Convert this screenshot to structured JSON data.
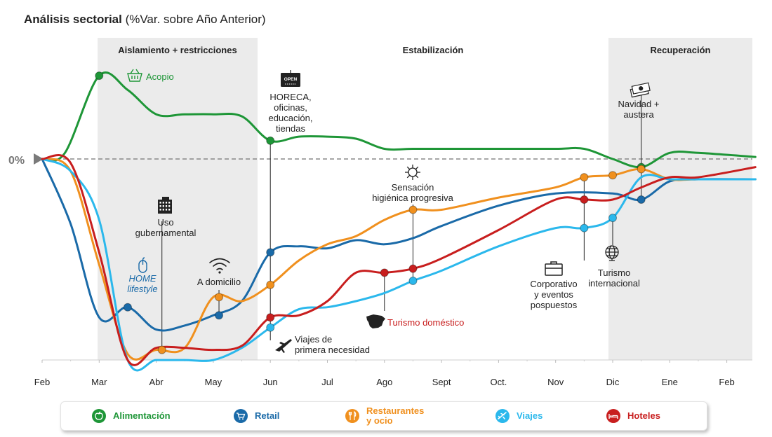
{
  "title": {
    "bold": "Análisis sectorial",
    "rest": " (%Var. sobre Año Anterior)"
  },
  "zero_label": "0%",
  "phases": [
    {
      "label": "Aislamiento + restricciones",
      "shaded": true
    },
    {
      "label": "Estabilización",
      "shaded": false
    },
    {
      "label": "Recuperación",
      "shaded": true
    }
  ],
  "annotations": {
    "acopio": "Acopio",
    "horeca": [
      "HORECA,",
      "oficinas,",
      "educación,",
      "tiendas"
    ],
    "uso": [
      "Uso",
      "gubernamental"
    ],
    "home": [
      "HOME",
      "lifestyle"
    ],
    "domicilio": "A domicilio",
    "sensacion": [
      "Sensación",
      "higiénica progresiva"
    ],
    "viajes_primera": [
      "Viajes de",
      "primera necesidad"
    ],
    "turismo_domestico": "Turismo doméstico",
    "corporativo": [
      "Corporativo",
      "y eventos",
      "pospuestos"
    ],
    "navidad": [
      "Navidad +",
      "austera"
    ],
    "turismo_internacional": [
      "Turismo",
      "internacional"
    ],
    "open_sign": "OPEN"
  },
  "colors": {
    "alimentacion": "#1e9637",
    "retail": "#1a6aa8",
    "restaurantes": "#f0901e",
    "viajes": "#2bb8ec",
    "hoteles": "#c81e1e",
    "shade": "#ebebeb"
  },
  "chart_data": {
    "type": "line",
    "title": "Análisis sectorial (%Var. sobre Año Anterior)",
    "xlabel": "",
    "ylabel": "",
    "categories": [
      "Feb",
      "Mar",
      "Abr",
      "May",
      "Jun",
      "Jul",
      "Ago",
      "Sept",
      "Oct.",
      "Nov",
      "Dic",
      "Ene",
      "Feb"
    ],
    "y_reference": "0%",
    "grid": false,
    "legend_position": "bottom",
    "series": [
      {
        "name": "Alimentación",
        "color": "#1e9637",
        "points": [
          [
            0,
            0
          ],
          [
            0.4,
            0.03
          ],
          [
            1,
            0.41
          ],
          [
            1.5,
            0.34
          ],
          [
            2,
            0.22
          ],
          [
            2.5,
            0.22
          ],
          [
            3,
            0.22
          ],
          [
            3.5,
            0.21
          ],
          [
            4,
            0.09
          ],
          [
            4.5,
            0.11
          ],
          [
            5,
            0.11
          ],
          [
            5.5,
            0.1
          ],
          [
            6,
            0.05
          ],
          [
            6.5,
            0.05
          ],
          [
            7,
            0.05
          ],
          [
            8,
            0.05
          ],
          [
            9,
            0.05
          ],
          [
            9.5,
            0.05
          ],
          [
            10,
            0.0
          ],
          [
            10.5,
            -0.04
          ],
          [
            11,
            0.03
          ],
          [
            11.5,
            0.03
          ],
          [
            12.5,
            0.01
          ]
        ]
      },
      {
        "name": "Retail",
        "color": "#1a6aa8",
        "points": [
          [
            0,
            0
          ],
          [
            0.5,
            -0.32
          ],
          [
            1,
            -0.78
          ],
          [
            1.5,
            -0.73
          ],
          [
            2,
            -0.84
          ],
          [
            2.5,
            -0.82
          ],
          [
            3,
            -0.77
          ],
          [
            3.5,
            -0.7
          ],
          [
            4,
            -0.46
          ],
          [
            4.5,
            -0.43
          ],
          [
            5,
            -0.44
          ],
          [
            5.5,
            -0.4
          ],
          [
            6,
            -0.42
          ],
          [
            6.5,
            -0.39
          ],
          [
            7,
            -0.33
          ],
          [
            8,
            -0.23
          ],
          [
            9,
            -0.17
          ],
          [
            10,
            -0.17
          ],
          [
            10.5,
            -0.2
          ],
          [
            11,
            -0.11
          ],
          [
            11.5,
            -0.1
          ],
          [
            12.5,
            -0.1
          ]
        ]
      },
      {
        "name": "Restaurantes y ocio",
        "color": "#f0901e",
        "points": [
          [
            0,
            0
          ],
          [
            0.5,
            -0.06
          ],
          [
            1,
            -0.52
          ],
          [
            1.5,
            -0.96
          ],
          [
            2,
            -0.94
          ],
          [
            2.5,
            -0.93
          ],
          [
            3,
            -0.68
          ],
          [
            3.5,
            -0.7
          ],
          [
            4,
            -0.62
          ],
          [
            4.5,
            -0.5
          ],
          [
            5,
            -0.42
          ],
          [
            5.5,
            -0.38
          ],
          [
            6,
            -0.3
          ],
          [
            6.5,
            -0.25
          ],
          [
            7,
            -0.25
          ],
          [
            8,
            -0.19
          ],
          [
            9,
            -0.14
          ],
          [
            9.5,
            -0.09
          ],
          [
            10,
            -0.08
          ],
          [
            10.5,
            -0.05
          ],
          [
            11,
            -0.1
          ],
          [
            11.5,
            -0.1
          ],
          [
            12.5,
            -0.1
          ]
        ]
      },
      {
        "name": "Viajes",
        "color": "#2bb8ec",
        "points": [
          [
            0,
            0
          ],
          [
            0.5,
            -0.06
          ],
          [
            1,
            -0.3
          ],
          [
            1.5,
            -0.99
          ],
          [
            2,
            -0.99
          ],
          [
            2.5,
            -0.99
          ],
          [
            3,
            -0.99
          ],
          [
            3.5,
            -0.93
          ],
          [
            4,
            -0.83
          ],
          [
            4.5,
            -0.74
          ],
          [
            5,
            -0.73
          ],
          [
            5.5,
            -0.7
          ],
          [
            6,
            -0.66
          ],
          [
            6.5,
            -0.6
          ],
          [
            7,
            -0.55
          ],
          [
            8,
            -0.43
          ],
          [
            9,
            -0.34
          ],
          [
            9.5,
            -0.34
          ],
          [
            10,
            -0.29
          ],
          [
            10.5,
            -0.09
          ],
          [
            11,
            -0.1
          ],
          [
            11.5,
            -0.1
          ],
          [
            12.5,
            -0.1
          ]
        ]
      },
      {
        "name": "Hoteles",
        "color": "#c81e1e",
        "points": [
          [
            0,
            0
          ],
          [
            0.5,
            -0.02
          ],
          [
            1,
            -0.46
          ],
          [
            1.5,
            -0.99
          ],
          [
            2,
            -0.93
          ],
          [
            2.5,
            -0.93
          ],
          [
            3,
            -0.94
          ],
          [
            3.5,
            -0.92
          ],
          [
            4,
            -0.78
          ],
          [
            4.5,
            -0.77
          ],
          [
            5,
            -0.7
          ],
          [
            5.5,
            -0.56
          ],
          [
            6,
            -0.56
          ],
          [
            6.5,
            -0.54
          ],
          [
            7,
            -0.49
          ],
          [
            8,
            -0.35
          ],
          [
            9,
            -0.2
          ],
          [
            9.5,
            -0.2
          ],
          [
            10,
            -0.2
          ],
          [
            10.5,
            -0.14
          ],
          [
            11,
            -0.09
          ],
          [
            11.5,
            -0.09
          ],
          [
            12.5,
            -0.04
          ]
        ]
      }
    ],
    "markers": [
      {
        "series": "Alimentación",
        "x": 1,
        "y": 0.41
      },
      {
        "series": "Alimentación",
        "x": 4,
        "y": 0.09
      },
      {
        "series": "Alimentación",
        "x": 10.5,
        "y": -0.04
      },
      {
        "series": "Retail",
        "x": 1.5,
        "y": -0.73
      },
      {
        "series": "Retail",
        "x": 3.1,
        "y": -0.77
      },
      {
        "series": "Retail",
        "x": 4,
        "y": -0.46
      },
      {
        "series": "Retail",
        "x": 10.5,
        "y": -0.2
      },
      {
        "series": "Restaurantes y ocio",
        "x": 2.1,
        "y": -0.94
      },
      {
        "series": "Restaurantes y ocio",
        "x": 3.1,
        "y": -0.68
      },
      {
        "series": "Restaurantes y ocio",
        "x": 4,
        "y": -0.62
      },
      {
        "series": "Restaurantes y ocio",
        "x": 6.5,
        "y": -0.25
      },
      {
        "series": "Restaurantes y ocio",
        "x": 9.5,
        "y": -0.09
      },
      {
        "series": "Restaurantes y ocio",
        "x": 10,
        "y": -0.08
      },
      {
        "series": "Restaurantes y ocio",
        "x": 10.5,
        "y": -0.05
      },
      {
        "series": "Viajes",
        "x": 4,
        "y": -0.83
      },
      {
        "series": "Viajes",
        "x": 6.5,
        "y": -0.6
      },
      {
        "series": "Viajes",
        "x": 9.5,
        "y": -0.34
      },
      {
        "series": "Viajes",
        "x": 10,
        "y": -0.29
      },
      {
        "series": "Hoteles",
        "x": 4,
        "y": -0.78
      },
      {
        "series": "Hoteles",
        "x": 6,
        "y": -0.56
      },
      {
        "series": "Hoteles",
        "x": 6.5,
        "y": -0.54
      },
      {
        "series": "Hoteles",
        "x": 9.5,
        "y": -0.2
      }
    ]
  },
  "legend": [
    {
      "label": "Alimentación",
      "icon": "apple-icon",
      "color": "#1e9637"
    },
    {
      "label": "Retail",
      "icon": "shopping-cart-icon",
      "color": "#1a6aa8"
    },
    {
      "label": "Restaurantes\ny ocio",
      "icon": "fork-knife-icon",
      "color": "#f0901e"
    },
    {
      "label": "Viajes",
      "icon": "airplane-icon",
      "color": "#2bb8ec"
    },
    {
      "label": "Hoteles",
      "icon": "bed-icon",
      "color": "#c81e1e"
    }
  ]
}
